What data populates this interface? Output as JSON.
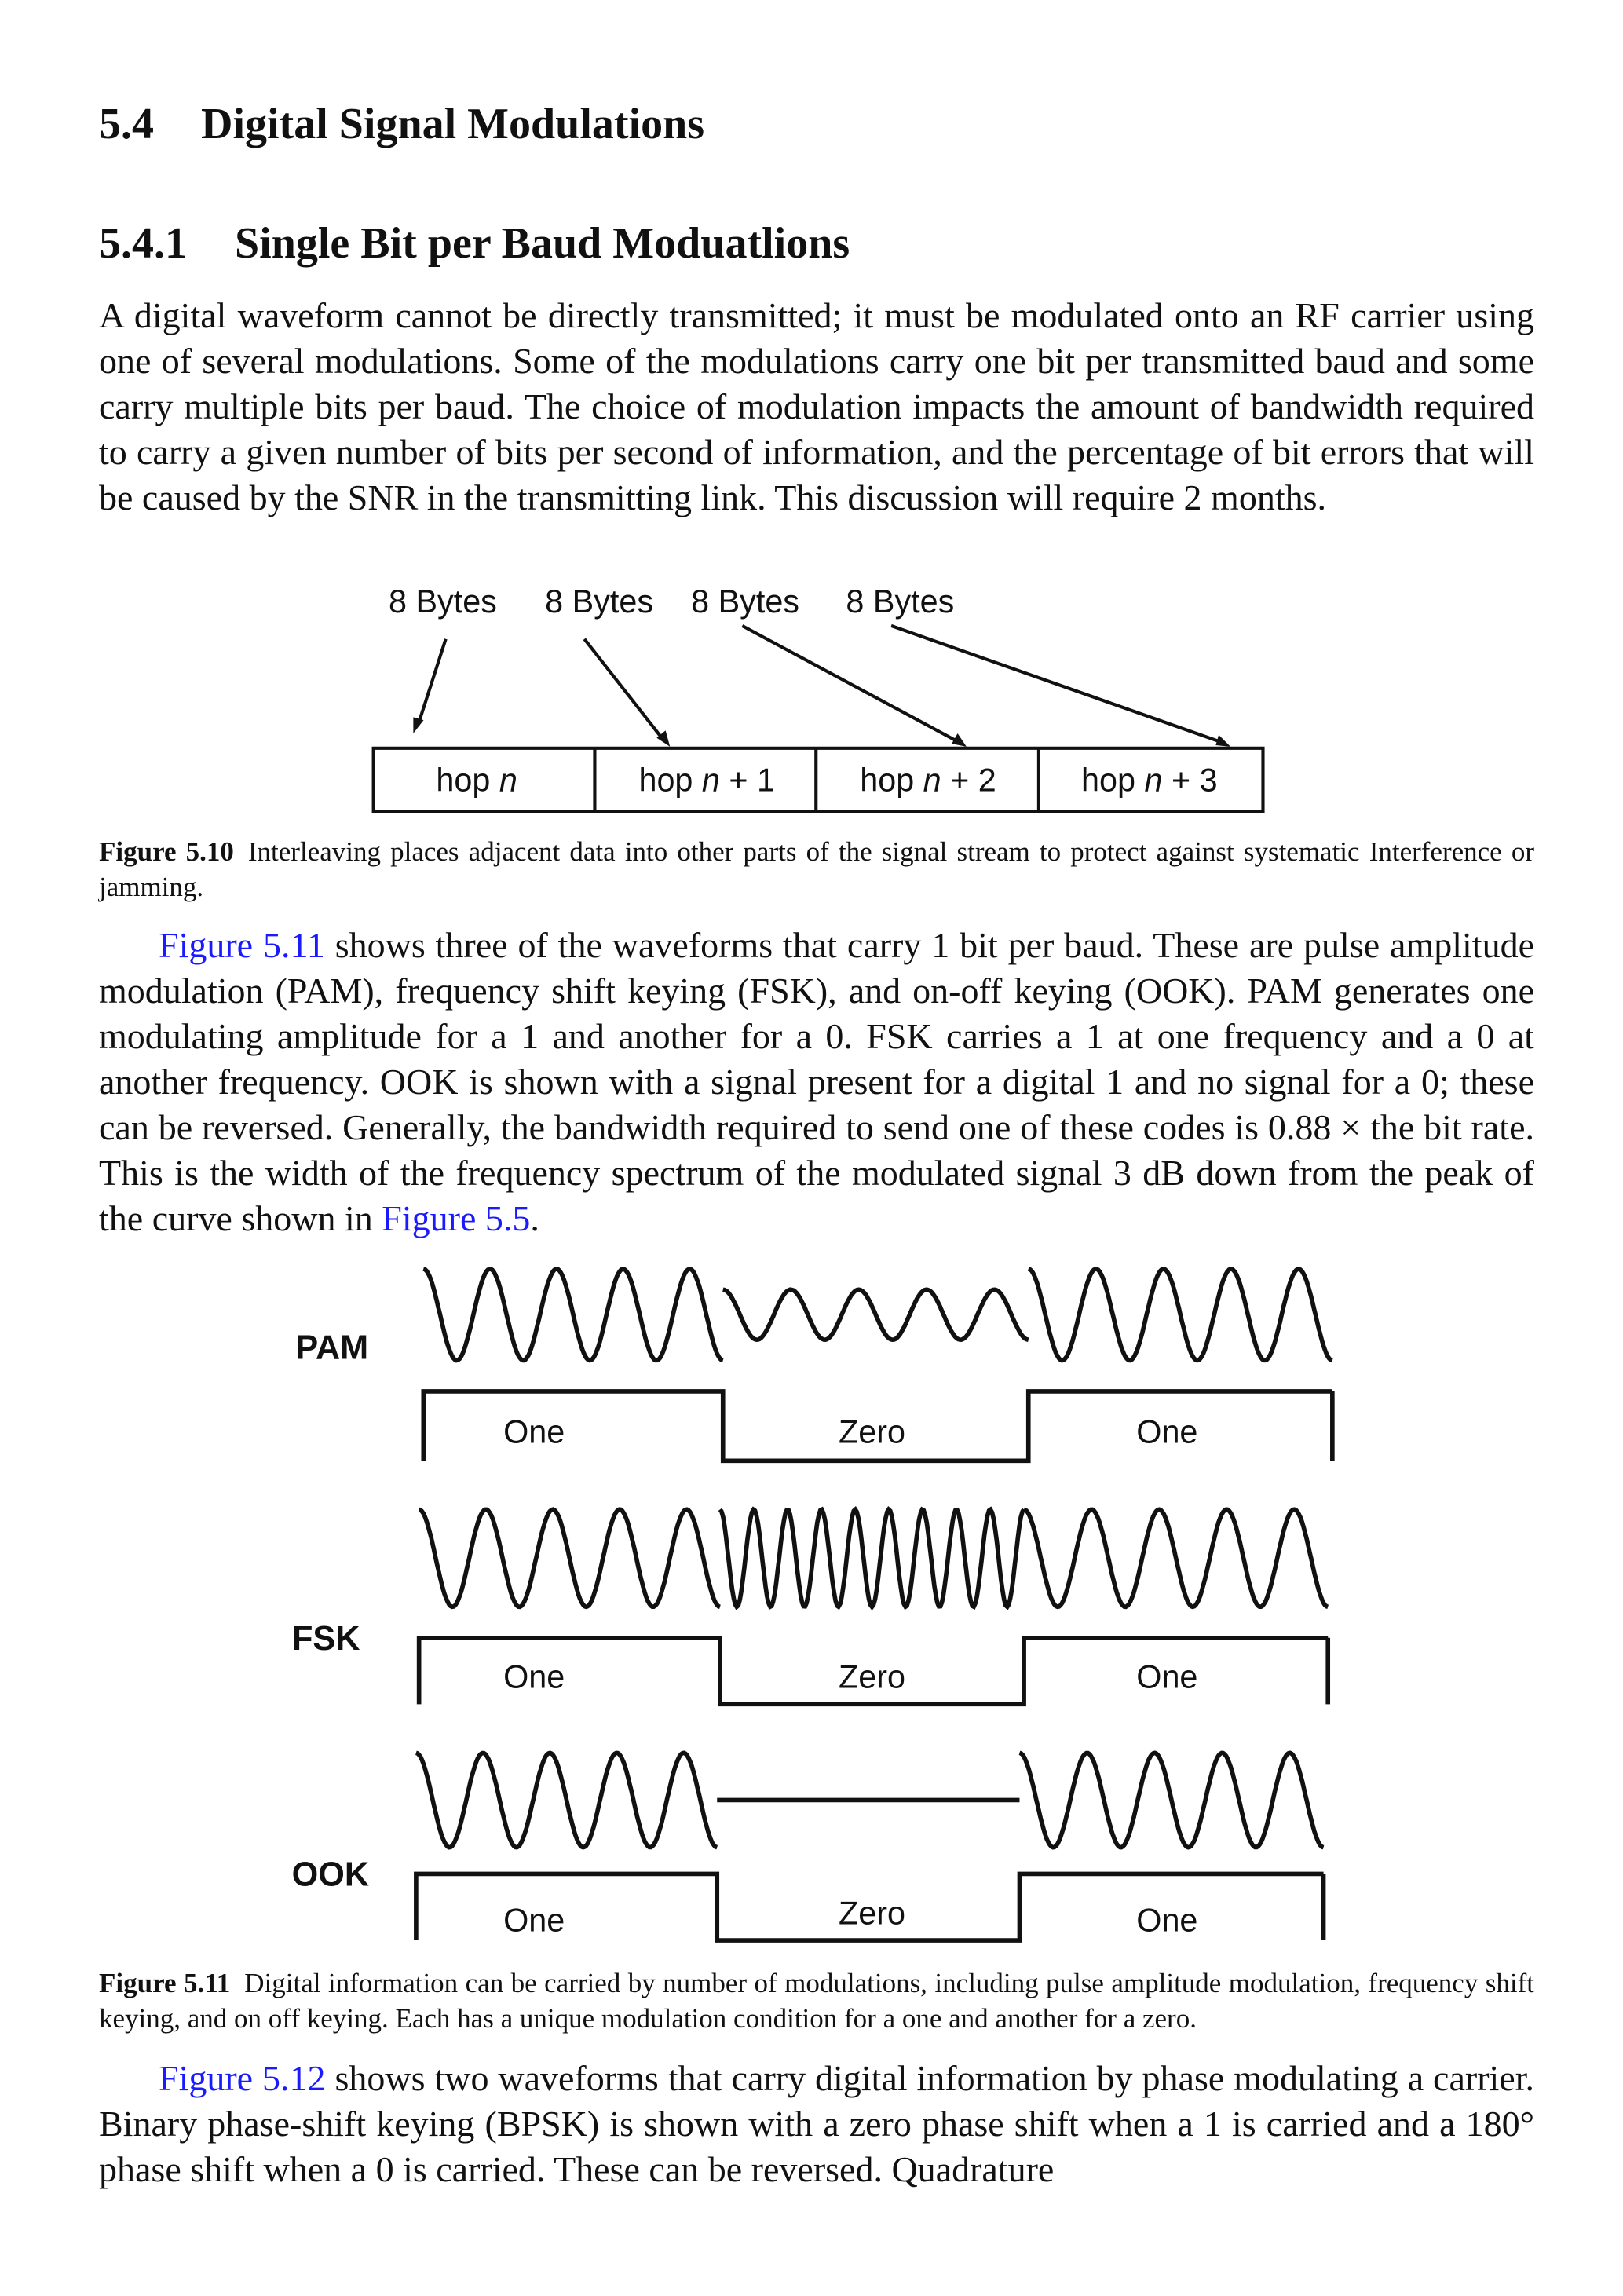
{
  "section": {
    "number": "5.4",
    "title": "Digital Signal Modulations"
  },
  "subsection": {
    "number": "5.4.1",
    "title": "Single Bit per Baud Moduatlions"
  },
  "paragraph1": "A digital waveform cannot be directly transmitted; it must be modulated onto an RF carrier using one of several modulations. Some of the modulations carry one bit per transmitted baud and some carry multiple bits per baud. The choice of modulation impacts the amount of bandwidth required to carry a given number of bits per second of information, and the percentage of bit errors that will be caused by the SNR in the transmitting link. This discussion will require 2 months.",
  "figure510": {
    "bytes_labels": [
      "8 Bytes",
      "8 Bytes",
      "8 Bytes",
      "8 Bytes"
    ],
    "hops": [
      {
        "prefix": "hop ",
        "var": "n",
        "suffix": ""
      },
      {
        "prefix": "hop ",
        "var": "n",
        "suffix": " + 1"
      },
      {
        "prefix": "hop ",
        "var": "n",
        "suffix": " + 2"
      },
      {
        "prefix": "hop ",
        "var": "n",
        "suffix": " + 3"
      }
    ],
    "caption_label": "Figure 5.10",
    "caption_text": "Interleaving places adjacent data into other parts of the signal stream to protect against systematic Interference or jamming."
  },
  "paragraph2": {
    "link": "Figure 5.11",
    "text": " shows three of the waveforms that carry 1 bit per baud. These are pulse amplitude modulation (PAM), frequency shift keying (FSK), and on-off keying (OOK). PAM generates one modulating amplitude for a 1 and another for a 0. FSK carries a 1 at one frequency and a 0 at another frequency. OOK is shown with a signal present for a digital 1 and no signal for a 0; these can be reversed. Generally, the bandwidth required to send one of these codes is 0.88 × the bit rate. This is the width of the frequency spectrum of the modulated signal 3 dB down from the peak of the curve shown in ",
    "link2": "Figure 5.5",
    "end": "."
  },
  "figure511": {
    "rows": [
      {
        "label": "PAM",
        "bits": [
          "One",
          "Zero",
          "One"
        ]
      },
      {
        "label": "FSK",
        "bits": [
          "One",
          "Zero",
          "One"
        ]
      },
      {
        "label": "OOK",
        "bits": [
          "One",
          "Zero",
          "One"
        ]
      }
    ],
    "caption_label": "Figure 5.11",
    "caption_text": "Digital information can be carried by number of modulations, including pulse amplitude modulation, frequency shift keying, and on off keying. Each has a unique modulation condition for a one and another for a zero."
  },
  "paragraph3": {
    "link": "Figure 5.12",
    "text": " shows two waveforms that carry digital information by phase modulating a carrier. Binary phase-shift keying (BPSK) is shown with a zero phase shift when a 1 is carried and a 180° phase shift when a 0 is carried. These can be reversed. Quadrature"
  },
  "colors": {
    "link": "#1a1aff",
    "text": "#111111"
  }
}
